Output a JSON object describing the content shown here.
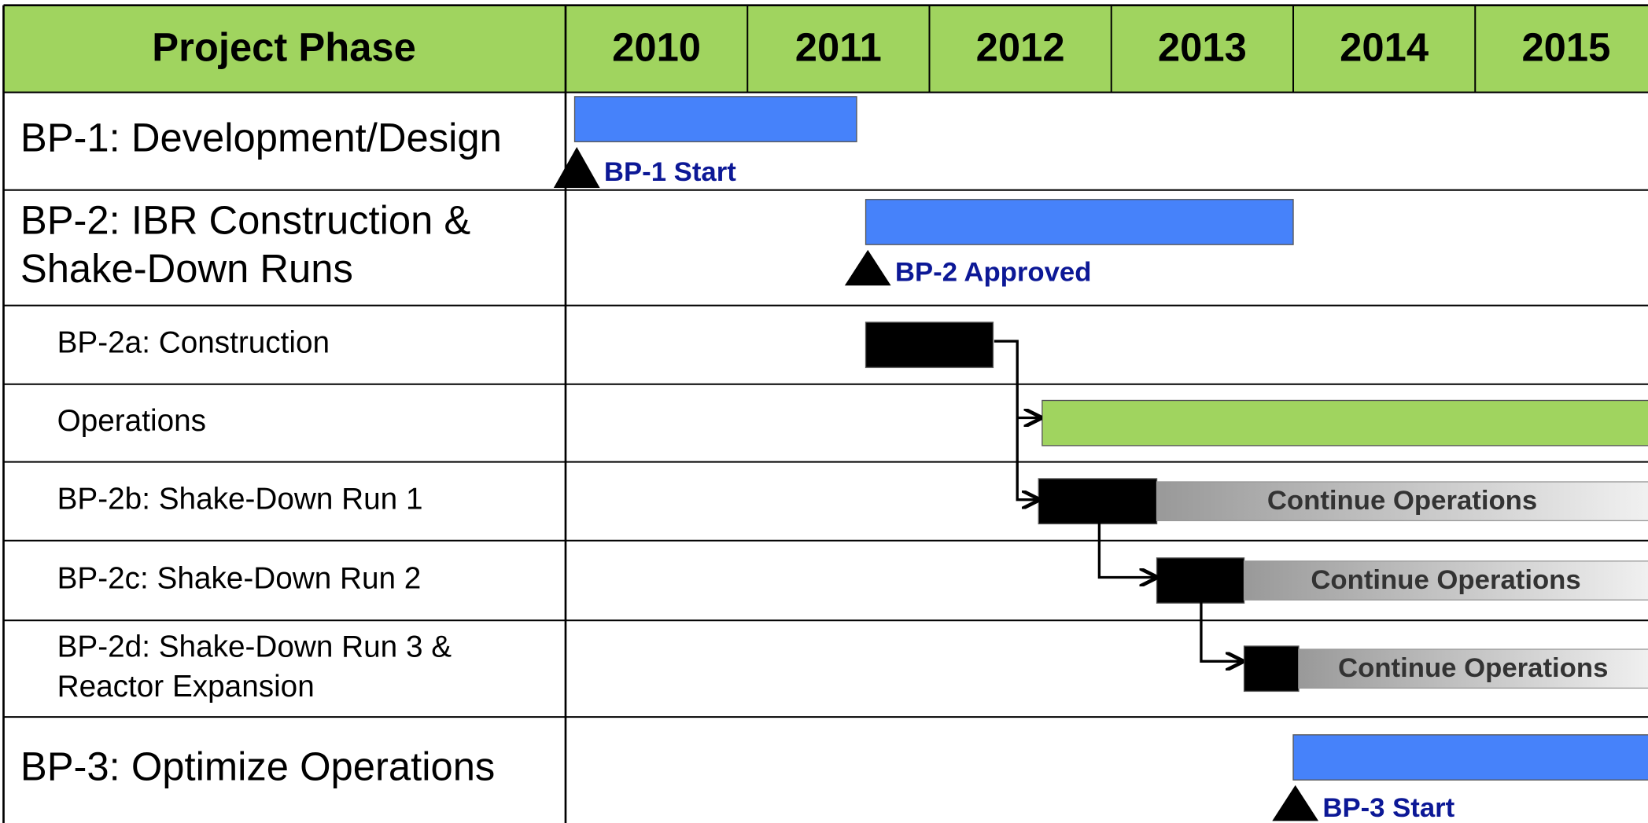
{
  "chart_data": {
    "type": "gantt",
    "header": "Project Phase",
    "years": [
      2010,
      2011,
      2012,
      2013,
      2014,
      2015
    ],
    "xlim": [
      2010,
      2016
    ],
    "rows": [
      {
        "label": [
          "BP-1: Development/Design"
        ],
        "bars": [
          {
            "start": 2010.05,
            "end": 2011.6,
            "color": "#4682fa"
          }
        ],
        "milestone": {
          "value": 2010.05,
          "label": "BP-1 Start"
        }
      },
      {
        "label": [
          "BP-2: IBR Construction &",
          "Shake-Down Runs"
        ],
        "bars": [
          {
            "start": 2011.65,
            "end": 2014.0,
            "color": "#4682fa"
          }
        ],
        "milestone": {
          "value": 2011.65,
          "label": "BP-2 Approved"
        }
      },
      {
        "label": [
          "BP-2a: Construction"
        ],
        "bars": [
          {
            "start": 2011.65,
            "end": 2012.35,
            "color": "#000000"
          }
        ]
      },
      {
        "label": [
          "Operations"
        ],
        "bars": [
          {
            "start": 2012.62,
            "end": 2016,
            "color": "#a0d45f"
          }
        ]
      },
      {
        "label": [
          "BP-2b: Shake-Down Run 1"
        ],
        "bars": [
          {
            "start": 2012.6,
            "end": 2013.25,
            "color": "#000000"
          },
          {
            "start": 2013.25,
            "end": 2016,
            "color": "#999999",
            "label": "Continue Operations"
          }
        ]
      },
      {
        "label": [
          "BP-2c: Shake-Down Run 2"
        ],
        "bars": [
          {
            "start": 2013.25,
            "end": 2013.73,
            "color": "#000000"
          },
          {
            "start": 2013.73,
            "end": 2016,
            "color": "#999999",
            "label": "Continue Operations"
          }
        ]
      },
      {
        "label": [
          "BP-2d: Shake-Down Run 3 &",
          "Reactor Expansion"
        ],
        "bars": [
          {
            "start": 2013.73,
            "end": 2014.03,
            "color": "#000000"
          },
          {
            "start": 2014.03,
            "end": 2016,
            "color": "#999999",
            "label": "Continue Operations"
          }
        ]
      },
      {
        "label": [
          "BP-3: Optimize Operations"
        ],
        "bars": [
          {
            "start": 2014.0,
            "end": 2016,
            "color": "#4682fa"
          }
        ],
        "milestone": {
          "value": 2014.0,
          "label": "BP-3 Start"
        }
      }
    ]
  }
}
